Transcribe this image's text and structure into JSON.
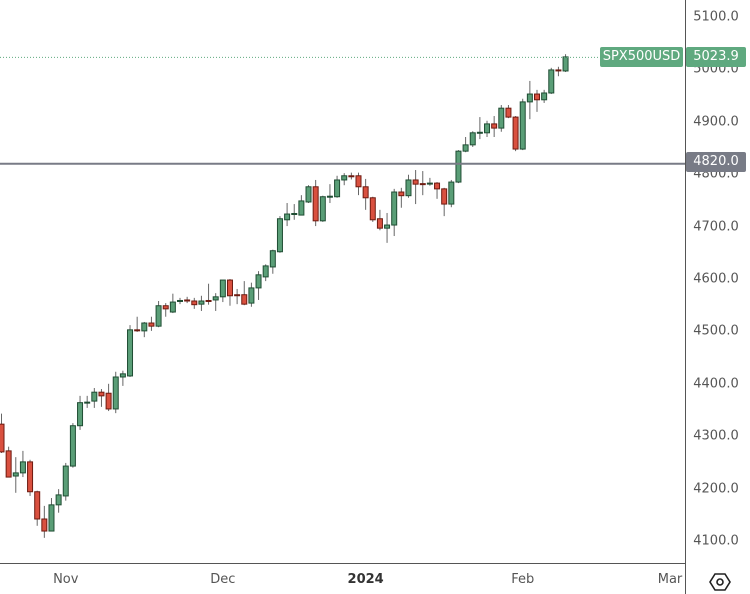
{
  "chart_data": {
    "type": "candlestick",
    "symbol": "SPX500USD",
    "last_price": "5023.9",
    "horizontal_level": "4820.0",
    "horizontal_level_value": 4820,
    "ylim": [
      4080,
      5130
    ],
    "y_ticks": [
      "5100.0",
      "5000.0",
      "4900.0",
      "4800.0",
      "4700.0",
      "4600.0",
      "4500.0",
      "4400.0",
      "4300.0",
      "4200.0",
      "4100.0"
    ],
    "x_ticks": [
      {
        "label": "Nov",
        "index": 9,
        "bold": false
      },
      {
        "label": "Dec",
        "index": 31,
        "bold": false
      },
      {
        "label": "2024",
        "index": 51,
        "bold": true
      },
      {
        "label": "Feb",
        "index": 73,
        "bold": false
      },
      {
        "label": "Mar",
        "index": 94,
        "bold": false
      }
    ],
    "colors": {
      "up": "#5a9e77",
      "up_border": "#1f4d33",
      "down": "#d9503f",
      "down_border": "#6e1a10",
      "wick": "#666666",
      "level": "#787b86",
      "last": "#5fa97f"
    },
    "ohlc": [
      [
        4323,
        4343,
        4268,
        4270
      ],
      [
        4272,
        4280,
        4222,
        4222
      ],
      [
        4224,
        4260,
        4192,
        4230
      ],
      [
        4230,
        4272,
        4222,
        4251
      ],
      [
        4251,
        4255,
        4186,
        4194
      ],
      [
        4194,
        4196,
        4129,
        4142
      ],
      [
        4142,
        4167,
        4106,
        4119
      ],
      [
        4119,
        4182,
        4119,
        4169
      ],
      [
        4169,
        4199,
        4154,
        4188
      ],
      [
        4186,
        4249,
        4177,
        4243
      ],
      [
        4243,
        4325,
        4240,
        4320
      ],
      [
        4320,
        4377,
        4312,
        4364
      ],
      [
        4364,
        4377,
        4354,
        4365
      ],
      [
        4367,
        4392,
        4354,
        4384
      ],
      [
        4384,
        4390,
        4356,
        4377
      ],
      [
        4382,
        4400,
        4348,
        4352
      ],
      [
        4352,
        4423,
        4344,
        4413
      ],
      [
        4413,
        4425,
        4396,
        4419
      ],
      [
        4415,
        4512,
        4413,
        4503
      ],
      [
        4503,
        4528,
        4499,
        4502
      ],
      [
        4501,
        4518,
        4489,
        4516
      ],
      [
        4516,
        4528,
        4501,
        4510
      ],
      [
        4510,
        4558,
        4508,
        4549
      ],
      [
        4549,
        4554,
        4528,
        4543
      ],
      [
        4537,
        4572,
        4535,
        4556
      ],
      [
        4558,
        4564,
        4552,
        4559
      ],
      [
        4560,
        4566,
        4554,
        4558
      ],
      [
        4558,
        4564,
        4543,
        4551
      ],
      [
        4552,
        4568,
        4539,
        4558
      ],
      [
        4559,
        4591,
        4551,
        4558
      ],
      [
        4560,
        4573,
        4539,
        4566
      ],
      [
        4566,
        4598,
        4556,
        4598
      ],
      [
        4598,
        4600,
        4549,
        4568
      ],
      [
        4570,
        4581,
        4552,
        4569
      ],
      [
        4570,
        4596,
        4550,
        4552
      ],
      [
        4554,
        4593,
        4547,
        4583
      ],
      [
        4583,
        4615,
        4560,
        4608
      ],
      [
        4604,
        4628,
        4596,
        4625
      ],
      [
        4623,
        4656,
        4610,
        4654
      ],
      [
        4652,
        4720,
        4650,
        4715
      ],
      [
        4713,
        4745,
        4701,
        4724
      ],
      [
        4724,
        4743,
        4713,
        4725
      ],
      [
        4722,
        4760,
        4722,
        4749
      ],
      [
        4747,
        4779,
        4745,
        4776
      ],
      [
        4776,
        4789,
        4701,
        4711
      ],
      [
        4711,
        4759,
        4709,
        4757
      ],
      [
        4757,
        4781,
        4745,
        4758
      ],
      [
        4757,
        4797,
        4755,
        4789
      ],
      [
        4789,
        4802,
        4779,
        4797
      ],
      [
        4797,
        4803,
        4790,
        4796
      ],
      [
        4797,
        4803,
        4760,
        4776
      ],
      [
        4776,
        4791,
        4732,
        4755
      ],
      [
        4755,
        4757,
        4709,
        4713
      ],
      [
        4715,
        4732,
        4693,
        4697
      ],
      [
        4697,
        4726,
        4669,
        4703
      ],
      [
        4703,
        4772,
        4682,
        4766
      ],
      [
        4766,
        4774,
        4736,
        4759
      ],
      [
        4759,
        4799,
        4755,
        4789
      ],
      [
        4789,
        4808,
        4743,
        4781
      ],
      [
        4782,
        4806,
        4760,
        4781
      ],
      [
        4782,
        4793,
        4778,
        4783
      ],
      [
        4783,
        4785,
        4753,
        4772
      ],
      [
        4772,
        4774,
        4720,
        4743
      ],
      [
        4743,
        4789,
        4737,
        4785
      ],
      [
        4785,
        4846,
        4783,
        4844
      ],
      [
        4844,
        4871,
        4842,
        4856
      ],
      [
        4856,
        4882,
        4852,
        4879
      ],
      [
        4879,
        4909,
        4867,
        4880
      ],
      [
        4879,
        4902,
        4871,
        4896
      ],
      [
        4896,
        4911,
        4871,
        4888
      ],
      [
        4888,
        4932,
        4881,
        4926
      ],
      [
        4926,
        4932,
        4907,
        4909
      ],
      [
        4909,
        4911,
        4844,
        4848
      ],
      [
        4848,
        4944,
        4846,
        4938
      ],
      [
        4938,
        4978,
        4905,
        4953
      ],
      [
        4953,
        4961,
        4919,
        4942
      ],
      [
        4942,
        4961,
        4936,
        4955
      ],
      [
        4955,
        5003,
        4953,
        4999
      ],
      [
        4999,
        5005,
        4987,
        4998
      ],
      [
        4997,
        5029,
        4995,
        5023.9
      ]
    ]
  }
}
